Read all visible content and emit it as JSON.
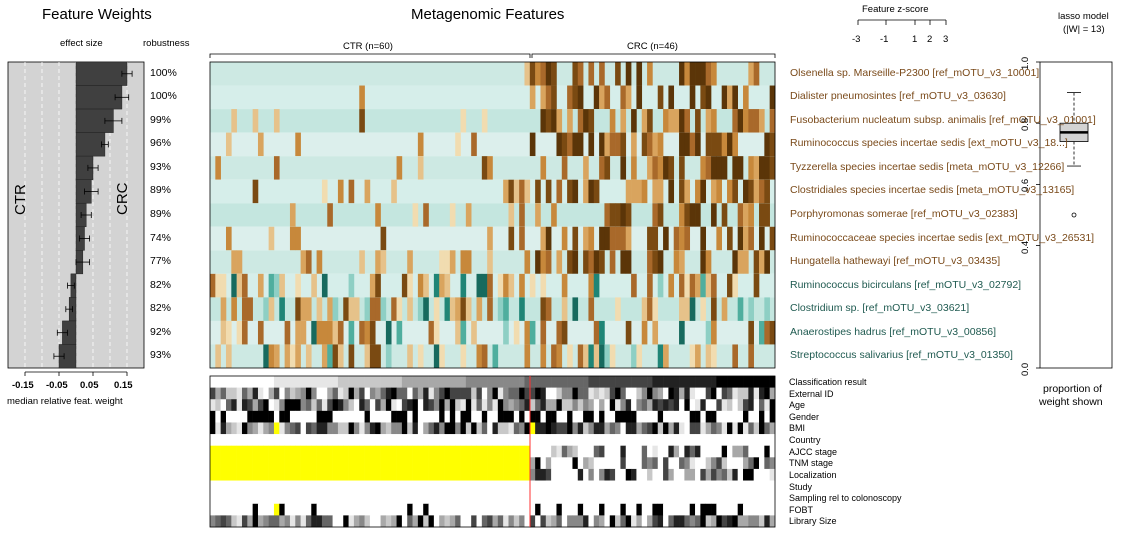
{
  "titles": {
    "weights": "Feature Weights",
    "heatmap": "Metagenomic Features",
    "zscore": "Feature z-score",
    "model": "lasso model",
    "model_sub": "(|W| = 13)"
  },
  "weights_panel": {
    "effect_size": "effect size",
    "robustness": "robustness",
    "xlabel": "median relative feat. weight",
    "ctr": "CTR",
    "crc": "CRC",
    "ticks": [
      "-0.15",
      "-0.05",
      "0.05",
      "0.15"
    ]
  },
  "groups": {
    "ctr": "CTR (n=60)",
    "crc": "CRC (n=46)"
  },
  "zscore_ticks": [
    "-3",
    "-1",
    "1",
    "2",
    "3"
  ],
  "model_panel": {
    "ylabel_ticks": [
      "0.0",
      "0.4",
      "0.6",
      "0.8",
      "1.0"
    ],
    "footer_line1": "proportion of",
    "footer_line2": "weight shown"
  },
  "metadata_rows": [
    "Classification result",
    "External ID",
    "Age",
    "Gender",
    "BMI",
    "Country",
    "AJCC stage",
    "TNM stage",
    "Localization",
    "Study",
    "Sampling rel to colonoscopy",
    "FOBT",
    "Library Size"
  ],
  "colors": {
    "crc": "#7a4a1a",
    "ctr": "#1f5a50",
    "bar": "#404040",
    "panel": "#d3d3d3",
    "na": "#ffff00",
    "divider": "#ff3030"
  },
  "chart_data": [
    {
      "type": "bar",
      "title": "Feature Weights",
      "xlabel": "median relative feat. weight",
      "xlim": [
        -0.2,
        0.2
      ],
      "orientation": "horizontal",
      "categories": [
        "Olsenella sp. Marseille-P2300 [ref_mOTU_v3_10001]",
        "Dialister pneumosintes [ref_mOTU_v3_03630]",
        "Fusobacterium nucleatum subsp. animalis [ref_mOTU_v3_01001]",
        "Ruminococcus species incertae sedis [ext_mOTU_v3_18...]",
        "Tyzzerella species incertae sedis [meta_mOTU_v3_12266]",
        "Clostridiales species incertae sedis [meta_mOTU_v3_13165]",
        "Porphyromonas somerae [ref_mOTU_v3_02383]",
        "Ruminococcaceae species incertae sedis [ext_mOTU_v3_26531]",
        "Hungatella hathewayi [ref_mOTU_v3_03435]",
        "Ruminococcus bicirculans [ref_mOTU_v3_02792]",
        "Clostridium sp. [ref_mOTU_v3_03621]",
        "Anaerostipes hadrus [ref_mOTU_v3_00856]",
        "Streptococcus salivarius [ref_mOTU_v3_01350]"
      ],
      "values": [
        0.15,
        0.135,
        0.11,
        0.085,
        0.05,
        0.045,
        0.03,
        0.025,
        0.02,
        -0.015,
        -0.02,
        -0.04,
        -0.05
      ],
      "errors": [
        0.015,
        0.02,
        0.025,
        0.01,
        0.015,
        0.02,
        0.015,
        0.015,
        0.02,
        0.01,
        0.01,
        0.015,
        0.015
      ],
      "robustness": [
        "100%",
        "100%",
        "99%",
        "96%",
        "93%",
        "89%",
        "89%",
        "74%",
        "77%",
        "82%",
        "82%",
        "92%",
        "93%"
      ],
      "enriched_in": [
        "CRC",
        "CRC",
        "CRC",
        "CRC",
        "CRC",
        "CRC",
        "CRC",
        "CRC",
        "CRC",
        "CTR",
        "CTR",
        "CTR",
        "CTR"
      ]
    },
    {
      "type": "heatmap",
      "title": "Metagenomic Features",
      "columns_ctr": 60,
      "columns_crc": 46
    },
    {
      "type": "box",
      "title": "lasso model",
      "ylim": [
        0.0,
        1.0
      ],
      "box": {
        "q1": 0.74,
        "median": 0.77,
        "q3": 0.8,
        "whisker_low": 0.66,
        "whisker_high": 0.9
      },
      "outliers": [
        0.5
      ]
    }
  ]
}
